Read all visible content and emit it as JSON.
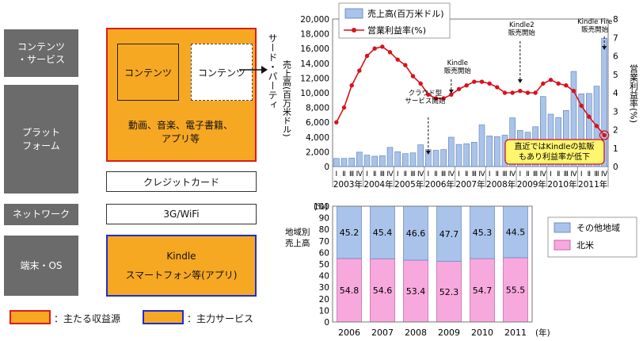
{
  "layers": [
    {
      "label": "コンテンツ\n・サービス"
    },
    {
      "label": "プラット\nフォーム"
    },
    {
      "label": "ネットワーク"
    },
    {
      "label": "端末・OS"
    }
  ],
  "content_inner1": "コンテンツ",
  "content_inner2": "コンテンツ",
  "third_party_label": "サード・パーティ",
  "platform_text": "動画、音楽、電子書籍、\nアプリ等",
  "credit_label": "クレジットカード",
  "network_label": "3G/WiFi",
  "device_line1": "Kindle",
  "device_line2": "スマートフォン等(アプリ)",
  "legend_main_revenue": "：主たる収益源",
  "legend_main_service": "：主力サービス",
  "colors": {
    "orange": "#f7a823",
    "red": "#e01a1a",
    "blue": "#1a2fd1",
    "gray": "#6b6b6b",
    "bar": "#a9c3ea",
    "line": "#d8111b",
    "pink": "#f7a9de"
  },
  "chart_data": [
    {
      "type": "bar+line",
      "ylabel": "売上高(百万米ドル)",
      "y2label": "営業利益率(%)",
      "ylim": [
        0,
        20000
      ],
      "y2lim": [
        0,
        8
      ],
      "yticks": [
        "0",
        "2,000",
        "4,000",
        "6,000",
        "8,000",
        "10,000",
        "12,000",
        "14,000",
        "16,000",
        "18,000",
        "20,000"
      ],
      "y2ticks": [
        "0",
        "1",
        "2",
        "3",
        "4",
        "5",
        "6",
        "7",
        "8"
      ],
      "quarter_labels": [
        "Ⅰ",
        "Ⅱ",
        "Ⅲ",
        "Ⅳ"
      ],
      "years": [
        "2003年",
        "2004年",
        "2005年",
        "2006年",
        "2007年",
        "2008年",
        "2009年",
        "2010年",
        "2011年"
      ],
      "series": [
        {
          "name": "売上高(百万米ドル)",
          "values": [
            1100,
            1100,
            1150,
            1950,
            1550,
            1400,
            1460,
            2600,
            2000,
            1750,
            1850,
            2950,
            2300,
            2200,
            2300,
            3980,
            3000,
            3100,
            3300,
            5650,
            4150,
            4050,
            4250,
            6600,
            4900,
            4650,
            5400,
            9500,
            7100,
            6650,
            7600,
            12900,
            9850,
            9900,
            10900,
            17400
          ]
        },
        {
          "name": "営業利益率(%)",
          "values": [
            2.4,
            3.2,
            4.4,
            5.2,
            6.0,
            6.4,
            6.5,
            6.2,
            5.8,
            5.5,
            4.9,
            4.5,
            3.9,
            3.7,
            3.7,
            3.9,
            4.2,
            4.4,
            4.6,
            4.6,
            4.5,
            4.3,
            4.0,
            4.0,
            4.1,
            4.0,
            4.0,
            4.5,
            4.7,
            4.5,
            4.4,
            4.1,
            3.3,
            2.7,
            2.2,
            1.7
          ]
        }
      ],
      "annotations": [
        "クラウド型\nサービス開始",
        "Kindle\n販売開始",
        "Kindle2\n販売開始",
        "Kindle Fire\n販売開始"
      ],
      "callout": "直近ではKindleの拡販\nもあり利益率が低下"
    },
    {
      "type": "stacked bar",
      "ylabel": "地域別\n売上高",
      "yunit": "(%)",
      "ylim": [
        0,
        100
      ],
      "yticks": [
        "0",
        "10",
        "20",
        "30",
        "40",
        "50",
        "60",
        "70",
        "80",
        "90",
        "100"
      ],
      "categories": [
        "2006",
        "2007",
        "2008",
        "2009",
        "2010",
        "2011"
      ],
      "xunit": "(年)",
      "series": [
        {
          "name": "北米",
          "values": [
            54.8,
            54.6,
            53.4,
            52.3,
            54.7,
            55.5
          ]
        },
        {
          "name": "その他地域",
          "values": [
            45.2,
            45.4,
            46.6,
            47.7,
            45.3,
            44.5
          ]
        }
      ]
    }
  ]
}
